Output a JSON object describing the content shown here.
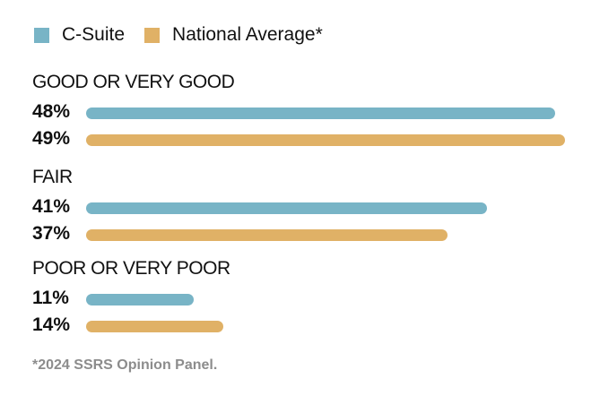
{
  "chart_data": {
    "type": "bar",
    "orientation": "horizontal",
    "categories": [
      "GOOD OR VERY GOOD",
      "FAIR",
      "POOR OR VERY POOR"
    ],
    "series": [
      {
        "name": "C-Suite",
        "color": "#78b4c6",
        "values": [
          48,
          41,
          11
        ],
        "labels": [
          "48%",
          "41%",
          "11%"
        ]
      },
      {
        "name": "National Average*",
        "color": "#e0b166",
        "values": [
          49,
          37,
          14
        ],
        "labels": [
          "49%",
          "37%",
          "14%"
        ]
      }
    ],
    "footnote": "*2024 SSRS Opinion Panel."
  }
}
